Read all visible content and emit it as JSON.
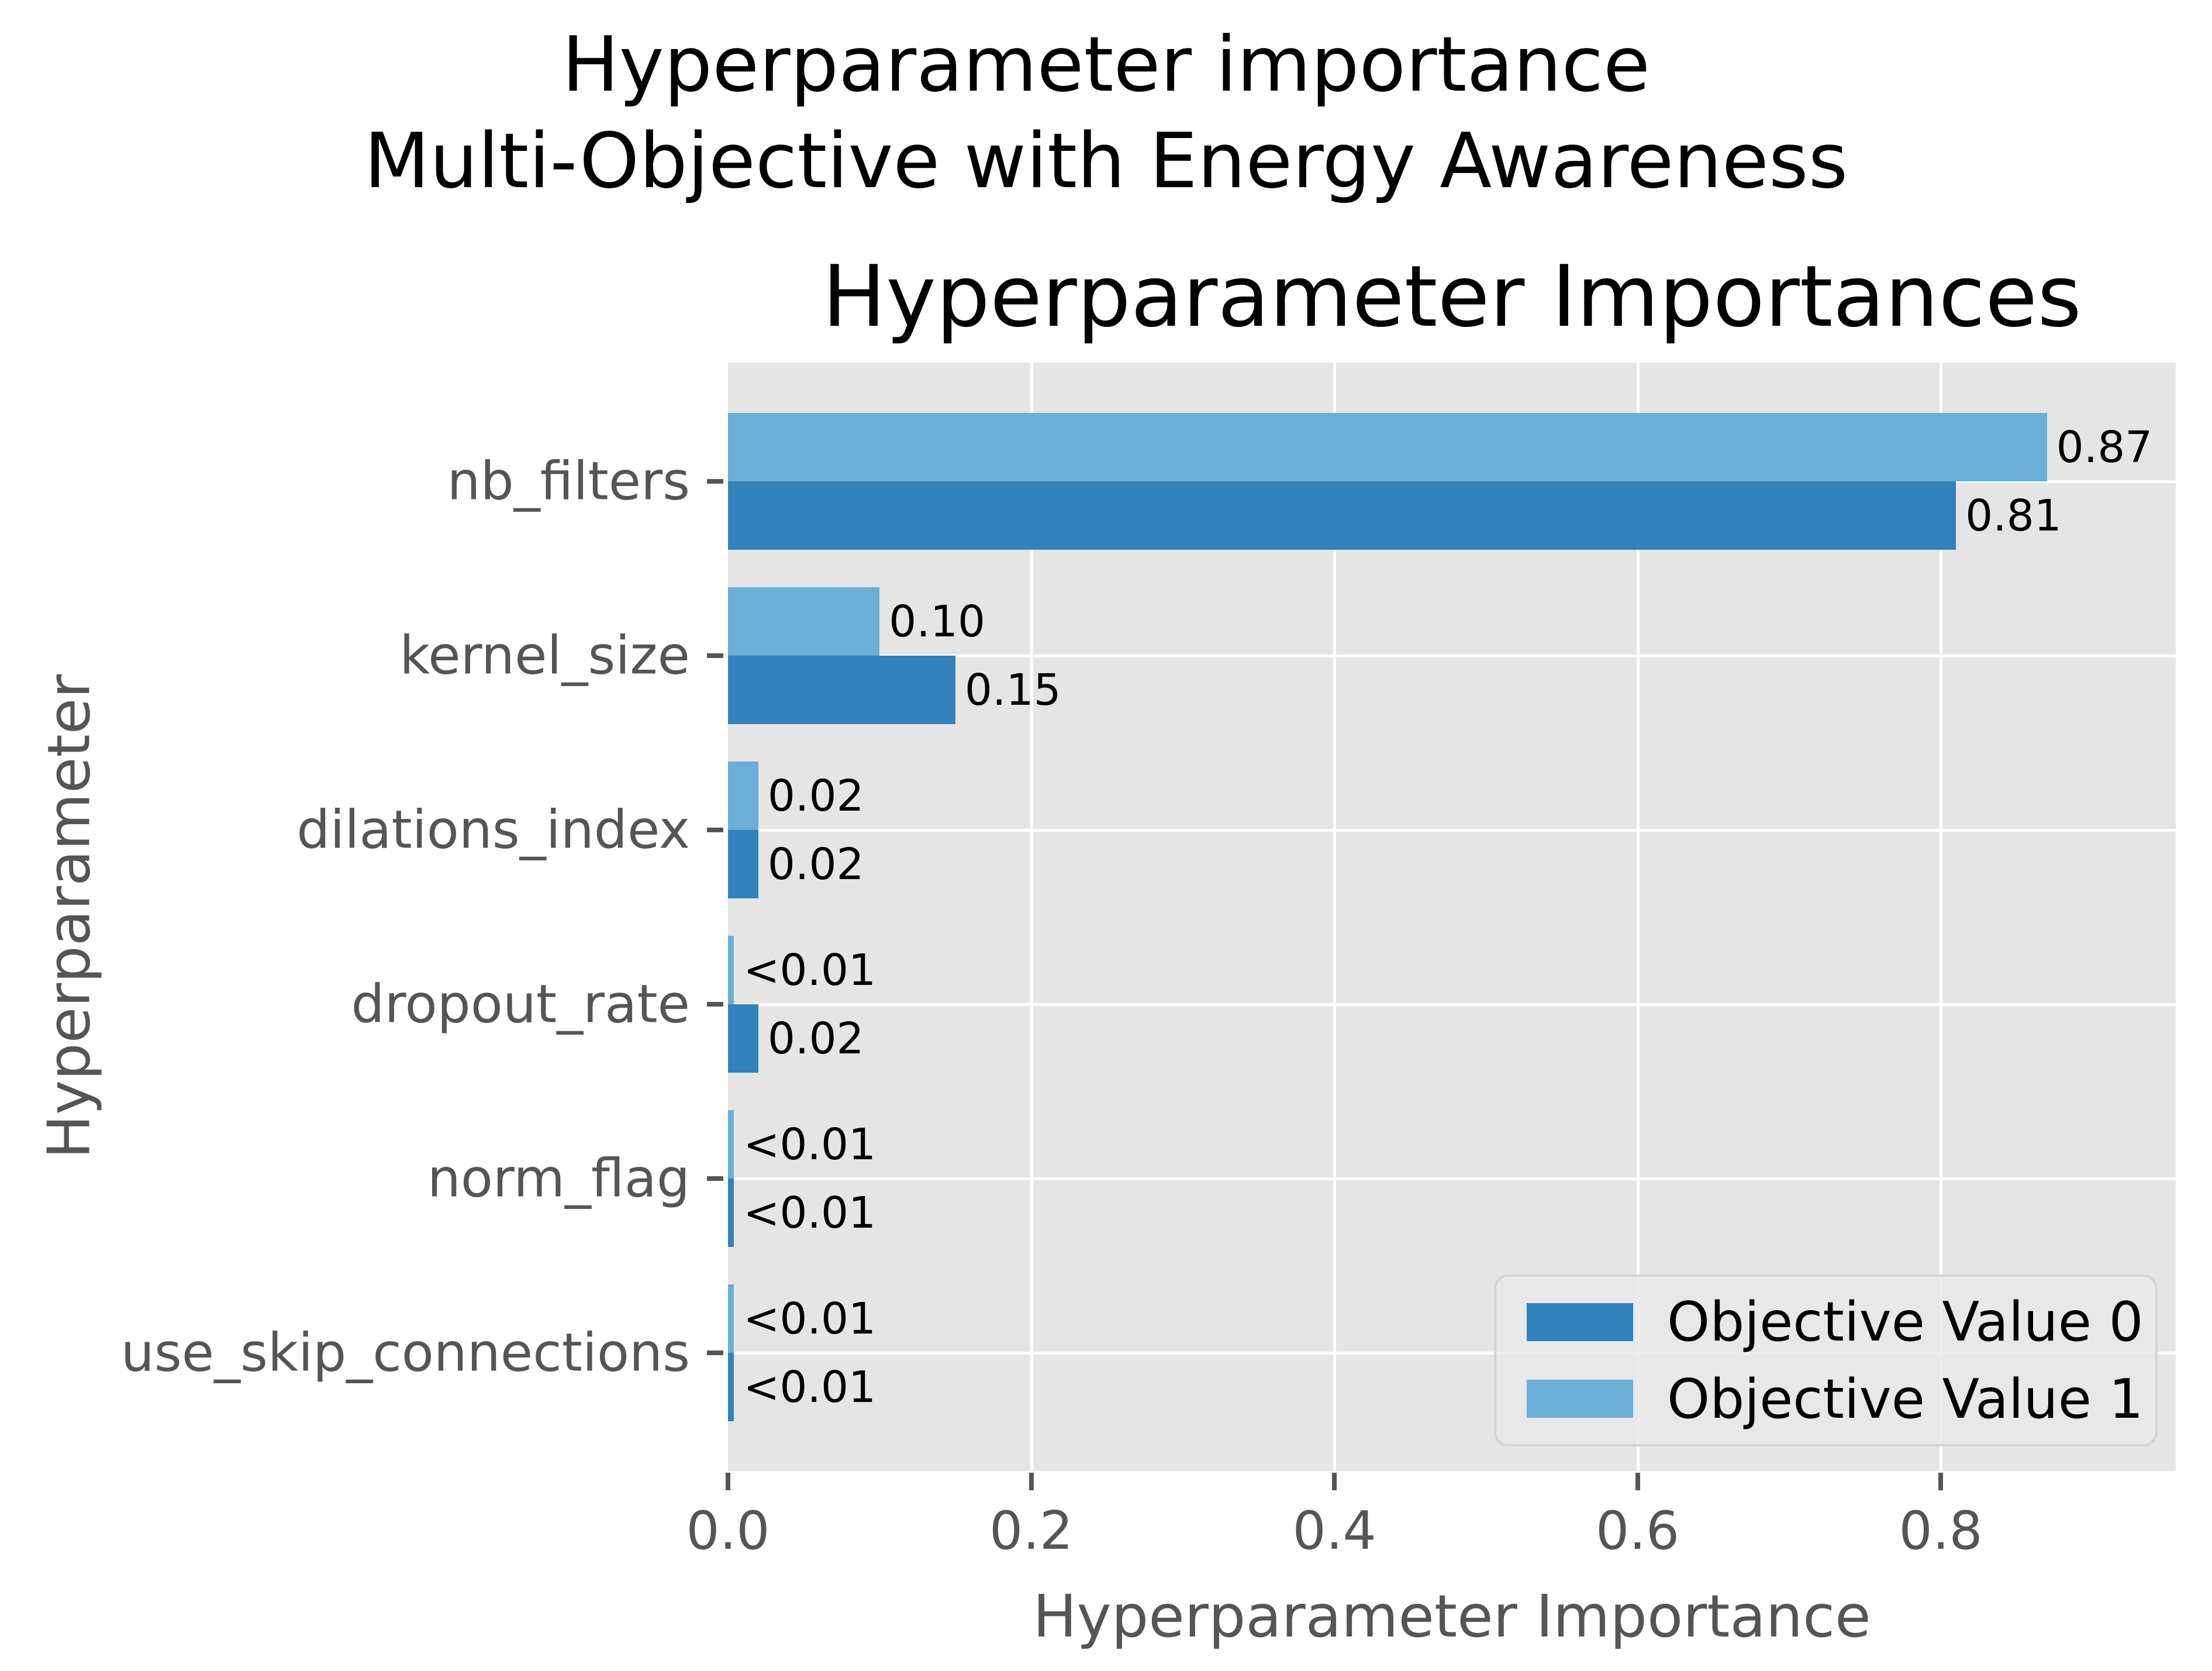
{
  "figure": {
    "title_line1": "Hyperparameter importance",
    "title_line2": "Multi-Objective with Energy Awareness"
  },
  "chart_data": {
    "type": "bar",
    "orientation": "horizontal",
    "title": "Hyperparameter Importances",
    "xlabel": "Hyperparameter Importance",
    "ylabel": "Hyperparameter",
    "categories": [
      "nb_filters",
      "kernel_size",
      "dilations_index",
      "dropout_rate",
      "norm_flag",
      "use_skip_connections"
    ],
    "series": [
      {
        "name": "Objective Value 0",
        "color": "#3182bd",
        "values": [
          0.81,
          0.15,
          0.02,
          0.02,
          0.004,
          0.004
        ],
        "labels": [
          "0.81",
          "0.15",
          "0.02",
          "0.02",
          "<0.01",
          "<0.01"
        ]
      },
      {
        "name": "Objective Value 1",
        "color": "#6baed6",
        "values": [
          0.87,
          0.1,
          0.02,
          0.004,
          0.004,
          0.004
        ],
        "labels": [
          "0.87",
          "0.10",
          "0.02",
          "<0.01",
          "<0.01",
          "<0.01"
        ]
      }
    ],
    "xlim": [
      0,
      0.955
    ],
    "xticks": [
      0.0,
      0.2,
      0.4,
      0.6,
      0.8
    ],
    "xtick_labels": [
      "0.0",
      "0.2",
      "0.4",
      "0.6",
      "0.8"
    ],
    "grid": true,
    "legend_position": "lower right",
    "colors": {
      "plot_bg": "#e5e5e5",
      "grid": "#ffffff",
      "tick_text": "#555555",
      "title_text": "#000000",
      "bar_label_text": "#000000"
    }
  },
  "legend": {
    "items": [
      {
        "label": "Objective Value 0",
        "color": "#3182bd"
      },
      {
        "label": "Objective Value 1",
        "color": "#6baed6"
      }
    ]
  }
}
